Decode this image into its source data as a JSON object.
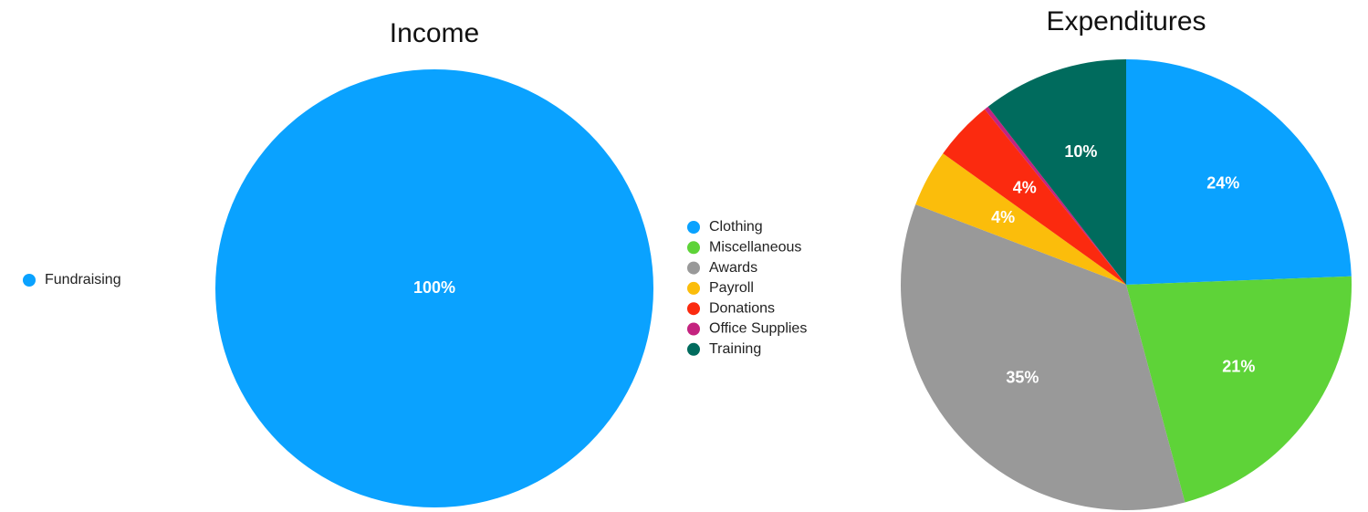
{
  "chart_data": [
    {
      "type": "pie",
      "title": "Income",
      "categories": [
        "Fundraising"
      ],
      "values": [
        100
      ],
      "value_labels": [
        "100%"
      ],
      "colors": [
        "#0aa2ff"
      ],
      "legend": "left"
    },
    {
      "type": "pie",
      "title": "Expenditures",
      "categories": [
        "Clothing",
        "Miscellaneous",
        "Awards",
        "Payroll",
        "Donations",
        "Office Supplies",
        "Training"
      ],
      "values": [
        24.4,
        21.4,
        35,
        4.1,
        4.3,
        0.3,
        10.5
      ],
      "value_labels": [
        "24%",
        "21%",
        "35%",
        "4%",
        "4%",
        null,
        "10%"
      ],
      "colors": [
        "#0aa2ff",
        "#5ed338",
        "#999999",
        "#fbbd0b",
        "#fb2a0f",
        "#c4237f",
        "#006b5d"
      ],
      "legend": "left"
    }
  ]
}
